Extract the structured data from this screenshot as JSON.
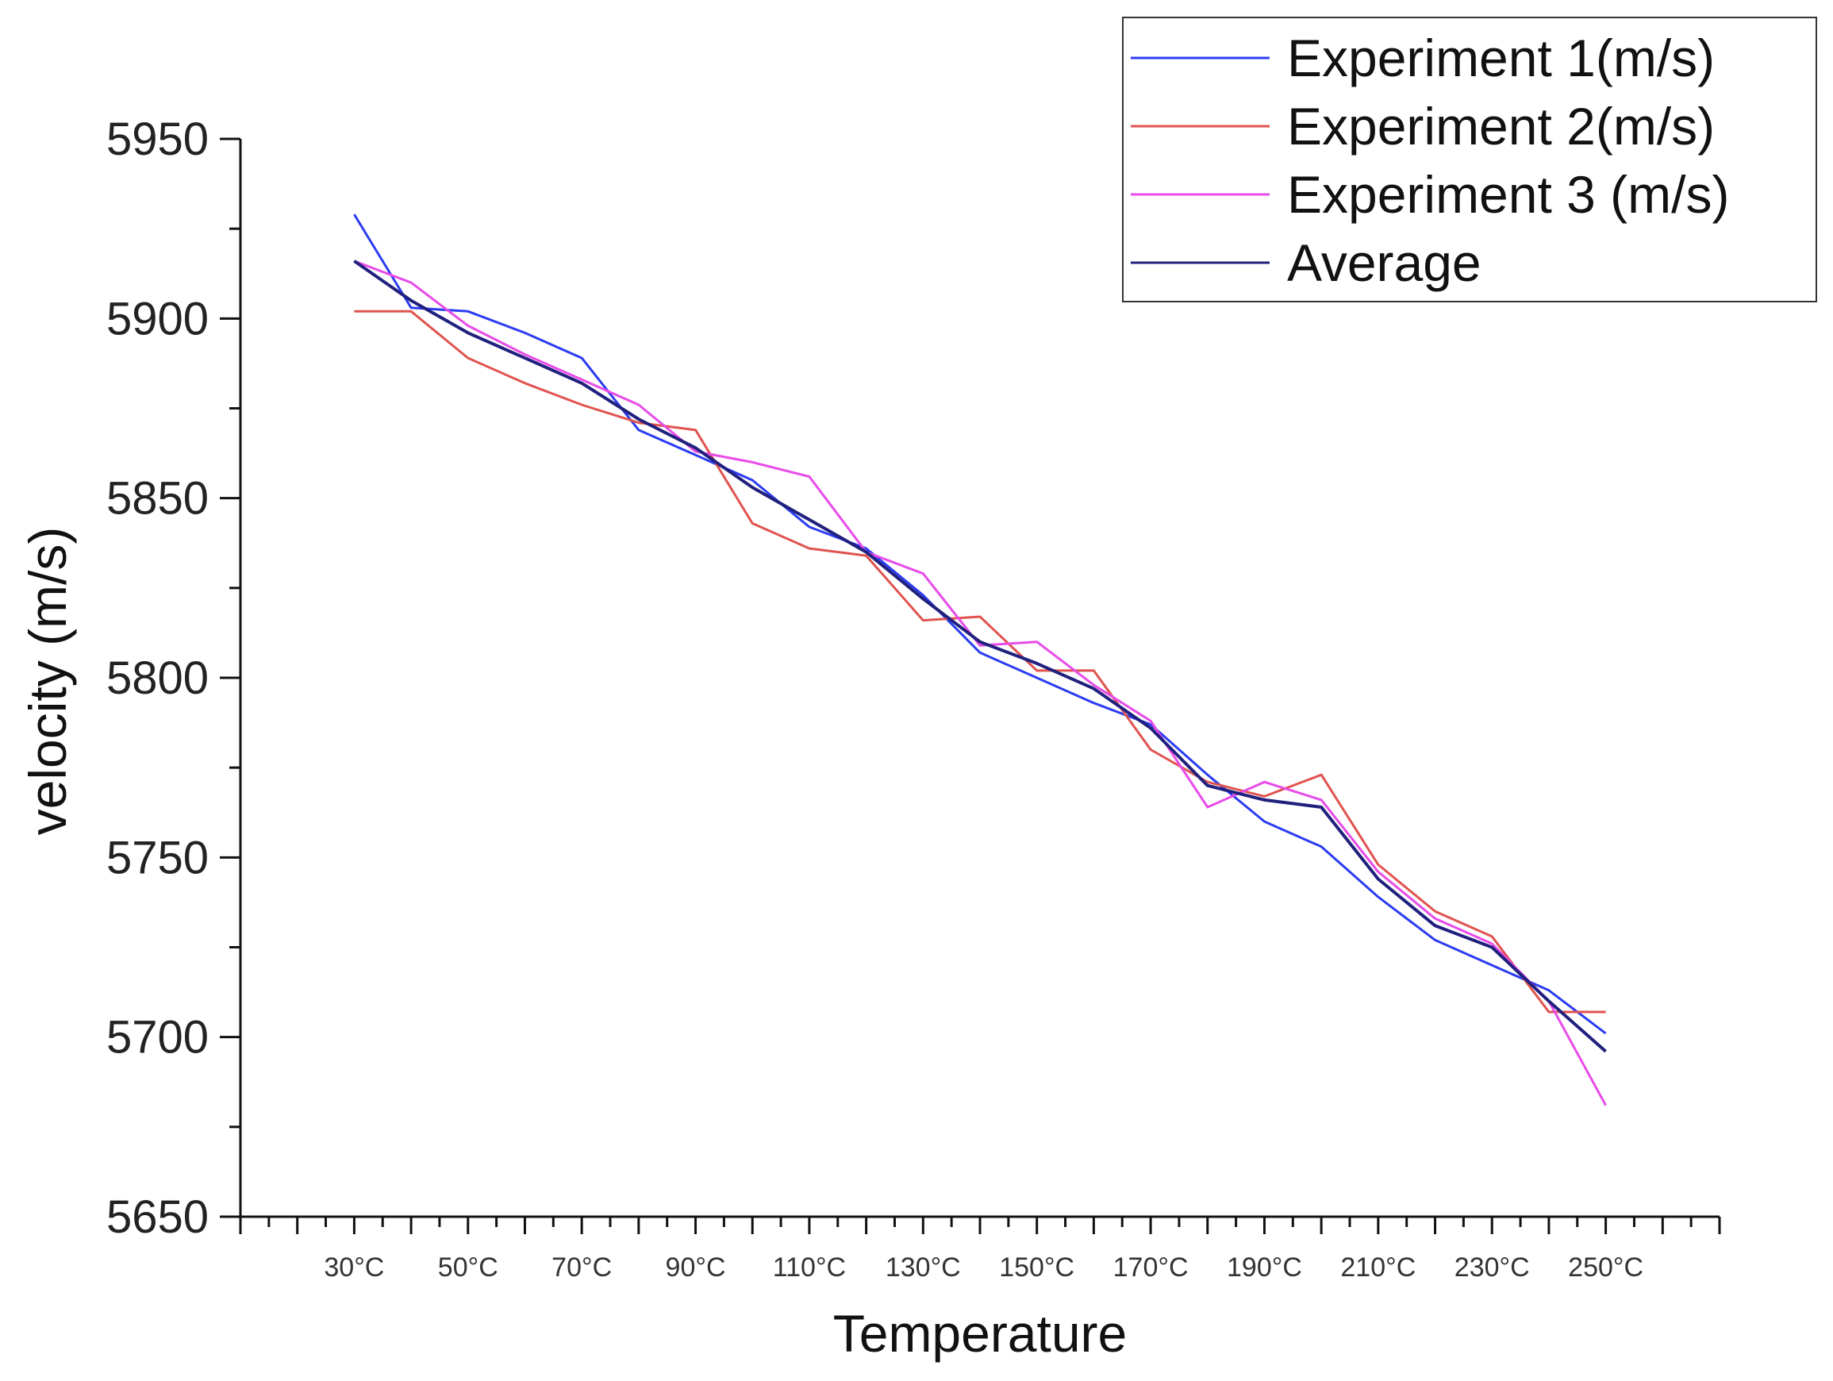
{
  "chart_data": {
    "type": "line",
    "title": "",
    "xlabel": "Temperature",
    "ylabel": "velocity (m/s)",
    "ylim": [
      5650,
      5950
    ],
    "yticks": [
      5650,
      5700,
      5750,
      5800,
      5850,
      5900,
      5950
    ],
    "ytick_labels": [
      "5650",
      "5700",
      "5750",
      "5800",
      "5850",
      "5900",
      "5950"
    ],
    "xlim": [
      10,
      270
    ],
    "x": [
      30,
      40,
      50,
      60,
      70,
      80,
      90,
      100,
      110,
      120,
      130,
      140,
      150,
      160,
      170,
      180,
      190,
      200,
      210,
      220,
      230,
      240,
      250
    ],
    "xticks": [
      30,
      50,
      70,
      90,
      110,
      130,
      150,
      170,
      190,
      210,
      230,
      250
    ],
    "xtick_labels": [
      "30°C",
      "50°C",
      "70°C",
      "90°C",
      "110°C",
      "130°C",
      "150°C",
      "170°C",
      "190°C",
      "210°C",
      "230°C",
      "250°C"
    ],
    "legend_position": "top-right",
    "series": [
      {
        "name": "Experiment 1(m/s)",
        "color": "#2b3cf2",
        "values": [
          5929,
          5903,
          5902,
          5896,
          5889,
          5869,
          5862,
          5855,
          5842,
          5836,
          5823,
          5807,
          5800,
          5793,
          5787,
          5773,
          5760,
          5753,
          5739,
          5727,
          5720,
          5713,
          5701
        ]
      },
      {
        "name": "Experiment 2(m/s)",
        "color": "#e0534f",
        "values": [
          5902,
          5902,
          5889,
          5882,
          5876,
          5871,
          5869,
          5843,
          5836,
          5834,
          5816,
          5817,
          5802,
          5802,
          5780,
          5771,
          5767,
          5773,
          5748,
          5735,
          5728,
          5707,
          5707
        ]
      },
      {
        "name": "Experiment 3 (m/s)",
        "color": "#e84be8",
        "values": [
          5916,
          5910,
          5898,
          5890,
          5883,
          5876,
          5863,
          5860,
          5856,
          5835,
          5829,
          5809,
          5810,
          5798,
          5788,
          5764,
          5771,
          5766,
          5746,
          5733,
          5726,
          5710,
          5681
        ]
      },
      {
        "name": "Average",
        "color": "#20207e",
        "values": [
          5916,
          5905,
          5896,
          5889,
          5882,
          5872,
          5864,
          5853,
          5844,
          5835,
          5822,
          5810,
          5804,
          5797,
          5786,
          5770,
          5766,
          5764,
          5744,
          5731,
          5725,
          5710,
          5696
        ]
      }
    ]
  }
}
